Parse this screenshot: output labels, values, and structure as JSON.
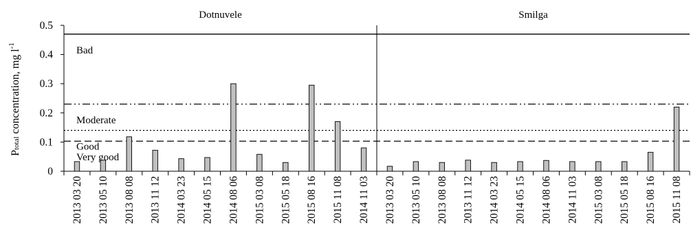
{
  "chart_data": {
    "type": "bar",
    "ylabel": {
      "main": "P",
      "subscript": "total",
      "rest": " concentration, mg l",
      "superscript": "-1"
    },
    "ylim": [
      0,
      0.5
    ],
    "yticks": [
      "0",
      "0.1",
      "0.2",
      "0.3",
      "0.4",
      "0.5"
    ],
    "grid": false,
    "bar_color": "#c0c0c0",
    "panels": [
      {
        "name": "Dotnuvele",
        "categories": [
          "2013 03 20",
          "2013 05 10",
          "2013 08 08",
          "2013 11 12",
          "2014 03 23",
          "2014 05 15",
          "2014 08 06",
          "2015 03 08",
          "2015 05 18",
          "2015 08 16",
          "2015 11 08",
          "2014 11 03"
        ],
        "values": [
          0.033,
          0.038,
          0.118,
          0.072,
          0.043,
          0.047,
          0.3,
          0.058,
          0.03,
          0.295,
          0.17,
          0.08
        ]
      },
      {
        "name": "Smilga",
        "categories": [
          "2013 03 20",
          "2013 05 10",
          "2013 08 08",
          "2013 11 12",
          "2014 03 23",
          "2014 05 15",
          "2014 08 06",
          "2014 11 03",
          "2015 03 08",
          "2015 05 18",
          "2015 08 16",
          "2015 11 08"
        ],
        "values": [
          0.017,
          0.033,
          0.03,
          0.038,
          0.03,
          0.033,
          0.037,
          0.033,
          0.033,
          0.033,
          0.065,
          0.22
        ]
      }
    ],
    "class_boundaries": [
      {
        "label": "Bad",
        "value": 0.47,
        "style": "solid"
      },
      {
        "label": "Moderate",
        "value": 0.23,
        "style": "dash-dot-dot"
      },
      {
        "label": "Good",
        "value": 0.14,
        "style": "dotted"
      },
      {
        "label": "Very good",
        "value": 0.103,
        "style": "dashed"
      }
    ]
  }
}
